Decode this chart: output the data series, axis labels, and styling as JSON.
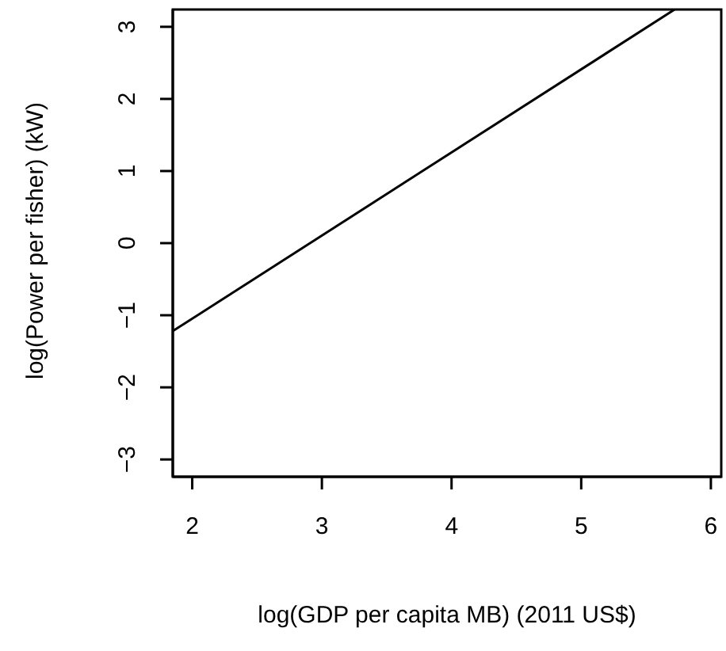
{
  "chart_data": {
    "type": "line",
    "xlabel": "log(GDP per capita MB) (2011 US$)",
    "ylabel": "log(Power per fisher) (kW)",
    "x": [
      1.85,
      5.72
    ],
    "series": [
      {
        "color": "#000000",
        "values": [
          -1.22,
          3.24
        ]
      }
    ],
    "xlim": [
      1.85,
      6.08
    ],
    "ylim": [
      -3.24,
      3.24
    ],
    "xticks": [
      2,
      3,
      4,
      5,
      6
    ],
    "yticks": [
      -3,
      -2,
      -1,
      0,
      1,
      2,
      3
    ],
    "marker": "none",
    "line_style": "solid"
  }
}
